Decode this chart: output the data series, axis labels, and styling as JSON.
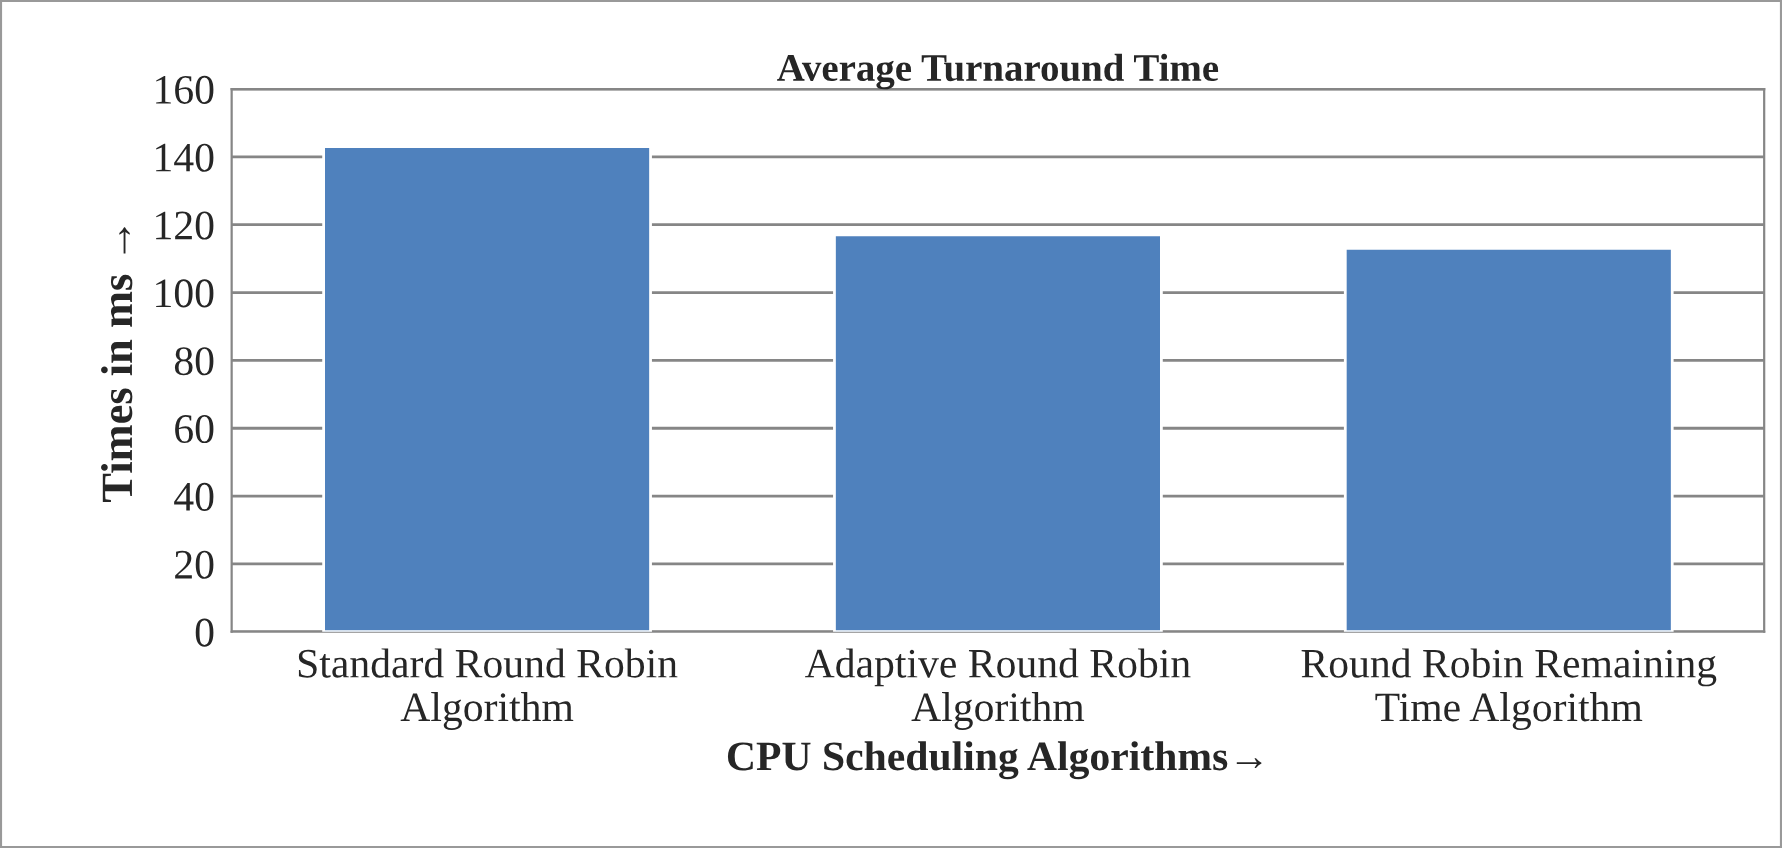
{
  "chart_data": {
    "type": "bar",
    "title": "Average Turnaround Time",
    "xlabel": "CPU Scheduling Algorithms→",
    "ylabel": "Times in ms →",
    "categories": [
      "Standard Round Robin\nAlgorithm",
      "Adaptive Round Robin\nAlgorithm",
      "Round Robin Remaining\nTime Algorithm"
    ],
    "values": [
      143,
      117,
      113
    ],
    "color": "#4f81bd",
    "ylim": [
      0,
      160
    ],
    "yticks": [
      0,
      20,
      40,
      60,
      80,
      100,
      120,
      140,
      160
    ],
    "grid": "y",
    "legend": false
  }
}
